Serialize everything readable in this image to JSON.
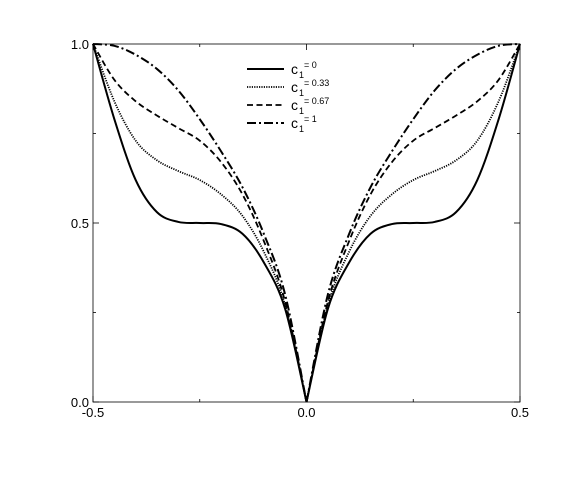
{
  "chart_data": {
    "type": "line",
    "title": "",
    "xlabel": "",
    "ylabel": "",
    "xlim": [
      -0.5,
      0.5
    ],
    "ylim": [
      0.0,
      1.0
    ],
    "x_ticks": [
      "-0.5",
      "0.0",
      "0.5"
    ],
    "y_ticks": [
      "0.0",
      "0.5",
      "1.0"
    ],
    "grid": false,
    "legend_position": "top-center",
    "x": [
      -0.5,
      -0.45,
      -0.4,
      -0.35,
      -0.3,
      -0.25,
      -0.2,
      -0.15,
      -0.1,
      -0.05,
      0.0,
      0.05,
      0.1,
      0.15,
      0.2,
      0.25,
      0.3,
      0.35,
      0.4,
      0.45,
      0.5
    ],
    "series": [
      {
        "legend_main": "c",
        "legend_sub": "1",
        "legend_sup": " = 0",
        "dash": "solid",
        "values": [
          1.0,
          0.79,
          0.62,
          0.53,
          0.503,
          0.5,
          0.497,
          0.47,
          0.39,
          0.26,
          0.0,
          0.26,
          0.39,
          0.47,
          0.497,
          0.5,
          0.503,
          0.53,
          0.62,
          0.79,
          1.0
        ]
      },
      {
        "legend_main": "c",
        "legend_sub": "1",
        "legend_sup": " = 0.33",
        "dash": "dotted",
        "values": [
          1.0,
          0.84,
          0.73,
          0.675,
          0.645,
          0.62,
          0.58,
          0.52,
          0.42,
          0.27,
          0.0,
          0.27,
          0.42,
          0.52,
          0.58,
          0.62,
          0.645,
          0.675,
          0.73,
          0.84,
          1.0
        ]
      },
      {
        "legend_main": "c",
        "legend_sub": "1",
        "legend_sup": " = 0.67",
        "dash": "dashed",
        "values": [
          1.0,
          0.9,
          0.84,
          0.8,
          0.765,
          0.73,
          0.67,
          0.58,
          0.45,
          0.28,
          0.0,
          0.28,
          0.45,
          0.58,
          0.67,
          0.73,
          0.765,
          0.8,
          0.84,
          0.9,
          1.0
        ]
      },
      {
        "legend_main": "c",
        "legend_sub": "1",
        "legend_sup": " = 1",
        "dash": "dashdot",
        "values": [
          1.0,
          0.995,
          0.97,
          0.93,
          0.87,
          0.79,
          0.7,
          0.6,
          0.47,
          0.3,
          0.0,
          0.3,
          0.47,
          0.6,
          0.7,
          0.79,
          0.87,
          0.93,
          0.97,
          0.995,
          1.0
        ]
      }
    ]
  }
}
